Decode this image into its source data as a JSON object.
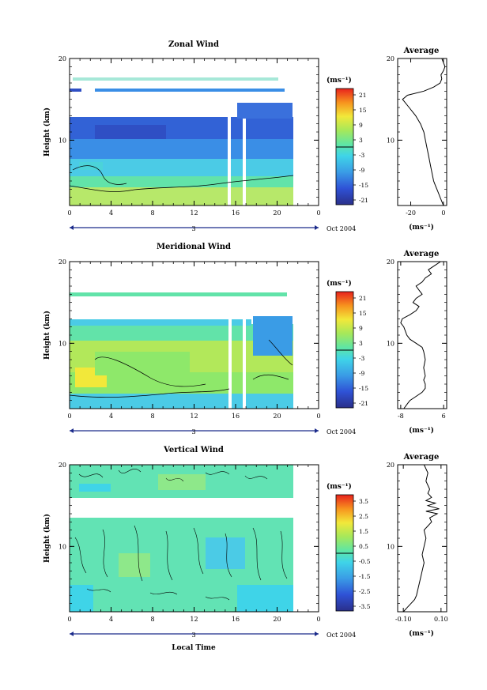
{
  "chart_data": [
    {
      "type": "heatmap",
      "title": "Zonal Wind",
      "ylabel": "Height (km)",
      "xlabel": "",
      "x_ticks": [
        "0",
        "4",
        "8",
        "12",
        "16",
        "20",
        "0"
      ],
      "y_ticks": [
        "20",
        "10"
      ],
      "date_marker": "3",
      "date_label": "Oct 2004",
      "colorbar": {
        "unit": "(ms⁻¹)",
        "ticks": [
          "21",
          "15",
          "9",
          "3",
          "-3",
          "-9",
          "-15",
          "-21"
        ]
      },
      "xlim": [
        0,
        24
      ],
      "ylim": [
        2,
        20
      ],
      "profile": {
        "title": "Average",
        "xlabel": "(ms⁻¹)",
        "x_ticks": [
          "-20",
          "0"
        ],
        "y_ticks": [
          "20",
          "10"
        ],
        "xlim": [
          -28,
          2
        ],
        "points": [
          [
            0,
            2
          ],
          [
            -1,
            2.5
          ],
          [
            -2,
            3
          ],
          [
            -3,
            3.5
          ],
          [
            -4,
            4
          ],
          [
            -5,
            4.5
          ],
          [
            -6,
            5
          ],
          [
            -7,
            6
          ],
          [
            -8,
            7
          ],
          [
            -9,
            8
          ],
          [
            -10,
            9
          ],
          [
            -11,
            10
          ],
          [
            -12,
            11
          ],
          [
            -14,
            12
          ],
          [
            -17,
            13
          ],
          [
            -19,
            13.5
          ],
          [
            -21,
            14
          ],
          [
            -25,
            15
          ],
          [
            -22,
            15.5
          ],
          [
            -12,
            16
          ],
          [
            -6,
            16.5
          ],
          [
            -2,
            17
          ],
          [
            -1,
            17.5
          ],
          [
            -1.5,
            18
          ],
          [
            0,
            18.5
          ],
          [
            1,
            19
          ],
          [
            0,
            19.5
          ],
          [
            -1,
            20
          ]
        ]
      }
    },
    {
      "type": "heatmap",
      "title": "Meridional Wind",
      "ylabel": "Height (km)",
      "xlabel": "",
      "x_ticks": [
        "0",
        "4",
        "8",
        "12",
        "16",
        "20",
        "0"
      ],
      "y_ticks": [
        "20",
        "10"
      ],
      "date_marker": "3",
      "date_label": "Oct 2004",
      "colorbar": {
        "unit": "(ms⁻¹)",
        "ticks": [
          "21",
          "15",
          "9",
          "3",
          "-3",
          "-9",
          "-15",
          "-21"
        ]
      },
      "xlim": [
        0,
        24
      ],
      "ylim": [
        2,
        20
      ],
      "profile": {
        "title": "Average",
        "xlabel": "(ms⁻¹)",
        "x_ticks": [
          "-8",
          "6"
        ],
        "y_ticks": [
          "20",
          "10"
        ],
        "xlim": [
          -9,
          7
        ],
        "points": [
          [
            -7,
            2
          ],
          [
            -6,
            2.5
          ],
          [
            -5,
            3
          ],
          [
            -3,
            3.5
          ],
          [
            -1,
            4
          ],
          [
            0,
            4.5
          ],
          [
            0,
            5
          ],
          [
            -0.5,
            5.5
          ],
          [
            0,
            6
          ],
          [
            -0.5,
            7
          ],
          [
            0,
            8
          ],
          [
            -0.5,
            9
          ],
          [
            -1,
            9.5
          ],
          [
            -3,
            10
          ],
          [
            -5,
            10.5
          ],
          [
            -6,
            11
          ],
          [
            -7,
            12
          ],
          [
            -8,
            12.5
          ],
          [
            -7.5,
            13
          ],
          [
            -5,
            13.5
          ],
          [
            -3,
            14
          ],
          [
            -2,
            14.5
          ],
          [
            -4,
            15
          ],
          [
            -3,
            15.5
          ],
          [
            -1,
            16
          ],
          [
            -2,
            16.5
          ],
          [
            -3,
            17
          ],
          [
            -1,
            17.5
          ],
          [
            0,
            18
          ],
          [
            2,
            18.5
          ],
          [
            1,
            19
          ],
          [
            3,
            19.5
          ],
          [
            5,
            20
          ]
        ]
      }
    },
    {
      "type": "heatmap",
      "title": "Vertical Wind",
      "ylabel": "Height (km)",
      "xlabel": "Local Time",
      "x_ticks": [
        "0",
        "4",
        "8",
        "12",
        "16",
        "20",
        "0"
      ],
      "y_ticks": [
        "20",
        "10"
      ],
      "date_marker": "3",
      "date_label": "Oct 2004",
      "colorbar": {
        "unit": "(ms⁻¹)",
        "ticks": [
          "3.5",
          "2.5",
          "1.5",
          "0.5",
          "-0.5",
          "-1.5",
          "-2.5",
          "-3.5"
        ]
      },
      "xlim": [
        0,
        24
      ],
      "ylim": [
        2,
        20
      ],
      "profile": {
        "title": "Average",
        "xlabel": "(ms⁻¹)",
        "x_ticks": [
          "-0.10",
          "0.10"
        ],
        "y_ticks": [
          "20",
          "10"
        ],
        "xlim": [
          -0.13,
          0.13
        ],
        "points": [
          [
            -0.1,
            2
          ],
          [
            -0.08,
            2.5
          ],
          [
            -0.06,
            3
          ],
          [
            -0.04,
            3.5
          ],
          [
            -0.03,
            4
          ],
          [
            -0.02,
            5
          ],
          [
            -0.01,
            6
          ],
          [
            0.0,
            7
          ],
          [
            0.01,
            8
          ],
          [
            0.0,
            9
          ],
          [
            0.01,
            10
          ],
          [
            0.02,
            11
          ],
          [
            0.01,
            12
          ],
          [
            0.03,
            12.5
          ],
          [
            0.05,
            13
          ],
          [
            0.04,
            13.5
          ],
          [
            0.08,
            14
          ],
          [
            0.02,
            14.3
          ],
          [
            0.09,
            14.6
          ],
          [
            0.03,
            15
          ],
          [
            0.07,
            15.3
          ],
          [
            0.02,
            15.6
          ],
          [
            0.05,
            16
          ],
          [
            0.03,
            16.5
          ],
          [
            0.04,
            17
          ],
          [
            0.02,
            18
          ],
          [
            0.03,
            19
          ],
          [
            0.01,
            20
          ]
        ]
      }
    }
  ]
}
